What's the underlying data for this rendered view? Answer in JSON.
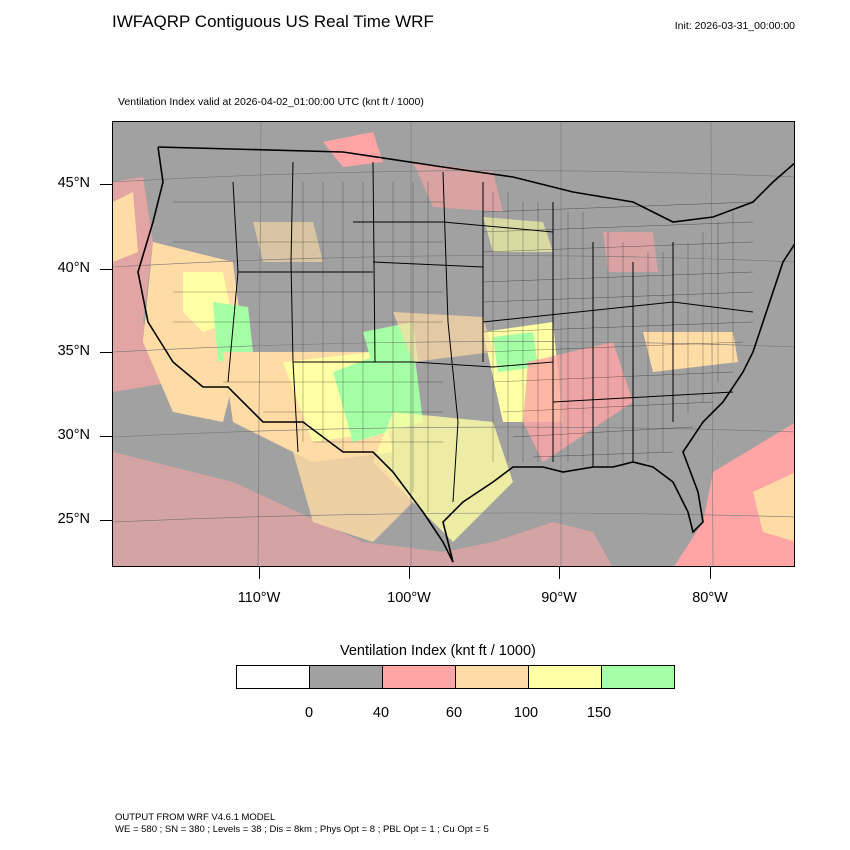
{
  "header": {
    "title": "IWFAQRP Contiguous US Real Time WRF",
    "init": "Init: 2026-03-31_00:00:00"
  },
  "plot": {
    "subtitle": "Ventilation Index valid at 2026-04-02_01:00:00 UTC   (knt ft / 1000)",
    "variable": "Ventilation Index",
    "units": "knt ft / 1000",
    "valid_time": "2026-04-02_01:00:00 UTC",
    "lat_labels": [
      "45°N",
      "40°N",
      "35°N",
      "30°N",
      "25°N"
    ],
    "lon_labels": [
      "110°W",
      "100°W",
      "90°W",
      "80°W"
    ],
    "colors": {
      "background_gray": "#a1a1a1",
      "pink": "#ffa5a5",
      "orange": "#ffdca5",
      "yellow": "#ffffa5",
      "green": "#a5ffa5"
    }
  },
  "legend": {
    "title": "Ventilation Index  (knt ft / 1000)",
    "bins": [
      {
        "color": "#ffffff"
      },
      {
        "color": "#a1a1a1"
      },
      {
        "color": "#ffa5a5"
      },
      {
        "color": "#ffdca5"
      },
      {
        "color": "#ffffa5"
      },
      {
        "color": "#a5ffa5"
      }
    ],
    "labels": [
      "0",
      "40",
      "60",
      "100",
      "150"
    ]
  },
  "footer": {
    "line1": "OUTPUT FROM WRF V4.6.1 MODEL",
    "line2": "WE = 580 ; SN = 380 ; Levels = 38 ; Dis = 8km ; Phys Opt = 8 ; PBL Opt = 1 ; Cu Opt = 5"
  }
}
